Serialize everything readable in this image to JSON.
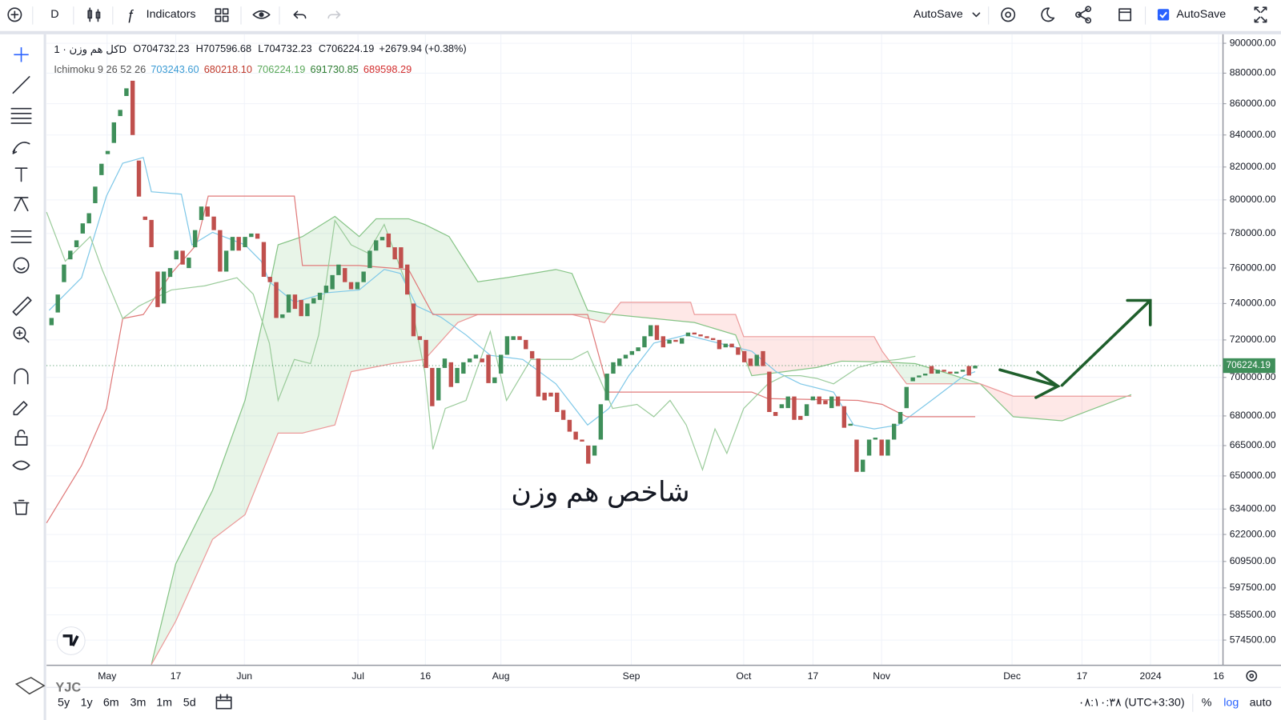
{
  "toolbar": {
    "interval": "D",
    "indicators": "Indicators",
    "autosave_menu": "AutoSave",
    "autosave_check": "AutoSave"
  },
  "legend": {
    "symbol": "کل هم وزن · 1D",
    "open": "O704732.23",
    "high": "H707596.68",
    "low": "L704732.23",
    "close": "C706224.19",
    "change": "+2679.94 (+0.38%)"
  },
  "ichimoku_legend": {
    "name": "Ichimoku 9 26 52 26",
    "values": [
      {
        "text": "703243.60",
        "color": "#3b9bd4"
      },
      {
        "text": "680218.10",
        "color": "#c0392b"
      },
      {
        "text": "706224.19",
        "color": "#5aa95a"
      },
      {
        "text": "691730.85",
        "color": "#2e7d32"
      },
      {
        "text": "689598.29",
        "color": "#d32f2f"
      }
    ]
  },
  "bottom_bar": {
    "ranges": [
      "5y",
      "1y",
      "6m",
      "3m",
      "1m",
      "5d"
    ],
    "time": "۰۸:۱۰:۳۸ (UTC+3:30)",
    "percent": "%",
    "log": "log",
    "auto": "auto"
  },
  "watermark": "YJC",
  "chart_data": {
    "type": "candlestick",
    "annotation": "شاخص هم وزن",
    "log": true,
    "grid": true,
    "up_color": "#3f8f5a",
    "down_color": "#c0504d",
    "xlim": [
      -0.8,
      187.7
    ],
    "ylim": [
      563700,
      906100
    ],
    "xticks": [
      {
        "value": 8.9,
        "label": "May"
      },
      {
        "value": 19.9,
        "label": "17"
      },
      {
        "value": 30.9,
        "label": "Jun"
      },
      {
        "value": 49.1,
        "label": "Jul"
      },
      {
        "value": 59.9,
        "label": "16"
      },
      {
        "value": 72.0,
        "label": "Aug"
      },
      {
        "value": 92.9,
        "label": "Sep"
      },
      {
        "value": 110.9,
        "label": "Oct"
      },
      {
        "value": 122.0,
        "label": "17"
      },
      {
        "value": 133.0,
        "label": "Nov"
      },
      {
        "value": 153.9,
        "label": "Dec"
      },
      {
        "value": 165.1,
        "label": "17"
      },
      {
        "value": 176.1,
        "label": "2024"
      },
      {
        "value": 187.0,
        "label": "16"
      }
    ],
    "yticks": [
      {
        "value": 900000,
        "label": "900000.00"
      },
      {
        "value": 880000,
        "label": "880000.00"
      },
      {
        "value": 860000,
        "label": "860000.00"
      },
      {
        "value": 840000,
        "label": "840000.00"
      },
      {
        "value": 820000,
        "label": "820000.00"
      },
      {
        "value": 800000,
        "label": "800000.00"
      },
      {
        "value": 780000,
        "label": "780000.00"
      },
      {
        "value": 760000,
        "label": "760000.00"
      },
      {
        "value": 740000,
        "label": "740000.00"
      },
      {
        "value": 720000,
        "label": "720000.00"
      },
      {
        "value": 700000,
        "label": "700000.00"
      },
      {
        "value": 680000,
        "label": "680000.00"
      },
      {
        "value": 665000,
        "label": "665000.00"
      },
      {
        "value": 650000,
        "label": "650000.00"
      },
      {
        "value": 634000,
        "label": "634000.00"
      },
      {
        "value": 622000,
        "label": "622000.00"
      },
      {
        "value": 609500,
        "label": "609500.00"
      },
      {
        "value": 597500,
        "label": "597500.00"
      },
      {
        "value": 585500,
        "label": "585500.00"
      },
      {
        "value": 574500,
        "label": "574500.00"
      }
    ],
    "open": [
      728000,
      735000,
      752000,
      765000,
      772000,
      780000,
      786000,
      798000,
      815000,
      828000,
      835000,
      852000,
      865000,
      875000,
      824000,
      790000,
      788000,
      758000,
      740000,
      755000,
      765000,
      770000,
      760000,
      772000,
      788000,
      796000,
      790000,
      782000,
      758000,
      770000,
      778000,
      772000,
      778000,
      780000,
      775000,
      755000,
      752000,
      732000,
      735000,
      745000,
      742000,
      733000,
      740000,
      742000,
      746000,
      748000,
      756000,
      760000,
      752000,
      748000,
      752000,
      760000,
      770000,
      776000,
      780000,
      772000,
      772000,
      762000,
      740000,
      722000,
      720000,
      705000,
      688000,
      705000,
      708000,
      697000,
      702000,
      708000,
      710000,
      710000,
      712000,
      697000,
      702000,
      712000,
      720000,
      722000,
      720000,
      714000,
      710000,
      692000,
      692000,
      692000,
      683000,
      678000,
      672000,
      668000,
      665000,
      660000,
      668000,
      688000,
      702000,
      706000,
      710000,
      712000,
      714000,
      716000,
      722000,
      728000,
      722000,
      718000,
      720000,
      718000,
      722000,
      724000,
      723000,
      722000,
      721000,
      720000,
      716000,
      718000,
      716000,
      714000,
      710000,
      706000,
      714000,
      703000,
      682000,
      684000,
      684000,
      690000,
      680000,
      680000,
      688000,
      690000,
      688000,
      684000,
      690000,
      685000,
      675000,
      668000,
      652000,
      660000,
      668000,
      668000,
      660000,
      668000,
      676000,
      684000,
      698000,
      700000,
      701000,
      706000,
      702000,
      704000,
      703000,
      702000,
      703000,
      706000,
      704732.23
    ],
    "close": [
      732000,
      745000,
      762000,
      770000,
      776000,
      786000,
      792000,
      808000,
      822000,
      830000,
      848000,
      856000,
      870000,
      840000,
      802000,
      788000,
      772000,
      738000,
      758000,
      760000,
      770000,
      762000,
      766000,
      782000,
      796000,
      790000,
      782000,
      758000,
      770000,
      778000,
      770000,
      778000,
      780000,
      777000,
      755000,
      752000,
      732000,
      734000,
      745000,
      737000,
      733000,
      740000,
      743000,
      746000,
      750000,
      756000,
      762000,
      752000,
      748000,
      752000,
      758000,
      770000,
      776000,
      778000,
      772000,
      765000,
      760000,
      745000,
      722000,
      720000,
      705000,
      685000,
      705000,
      710000,
      695000,
      705000,
      708000,
      710000,
      712000,
      708000,
      697000,
      700000,
      712000,
      722000,
      722000,
      720000,
      715000,
      710000,
      690000,
      688000,
      690000,
      682000,
      678000,
      672000,
      668000,
      667000,
      656000,
      665000,
      686000,
      702000,
      708000,
      710000,
      712000,
      714000,
      716000,
      722000,
      728000,
      720000,
      716000,
      720000,
      719000,
      721000,
      724000,
      723000,
      722000,
      721000,
      720000,
      715000,
      718000,
      716000,
      712000,
      708000,
      706000,
      712000,
      706000,
      682000,
      680000,
      686000,
      690000,
      678000,
      678000,
      686000,
      690000,
      686000,
      686000,
      690000,
      685000,
      674000,
      676000,
      652000,
      658000,
      668000,
      669000,
      660000,
      668000,
      676000,
      682000,
      695000,
      700000,
      701000,
      702000,
      702000,
      704000,
      703000,
      702000,
      703000,
      704000,
      701000,
      706224.19
    ],
    "cloud_fill": {
      "up": "rgba(76,175,80,0.13)",
      "down": "rgba(244,67,54,0.12)"
    },
    "series": [
      {
        "color": "#86c486",
        "x": [
          16.0,
          19.9,
          25.8,
          31.0,
          33.6,
          36.3,
          40.2,
          45.4,
          49.3,
          52.0,
          57.2,
          59.8,
          63.7,
          68.3,
          72.9,
          80.8,
          83.4,
          85.9,
          89.9,
          96.5,
          103.0,
          109.6,
          112.2,
          117.4,
          122.6,
          126.6,
          133.1,
          138.4,
          143.6,
          148.8,
          154.1,
          161.9,
          167.1,
          173.0
        ],
        "values": [
          564000,
          608400,
          643000,
          688000,
          727200,
          773400,
          778200,
          790100,
          778200,
          788700,
          788700,
          785300,
          778200,
          752200,
          754500,
          759200,
          756900,
          736200,
          733900,
          731700,
          729500,
          722700,
          700900,
          703000,
          705200,
          708600,
          708200,
          707300,
          702100,
          696600,
          679600,
          677500,
          683800,
          691000
        ]
      },
      {
        "color": "#ec9a9a",
        "x": [
          16.0,
          19.9,
          25.8,
          31.0,
          36.3,
          40.2,
          45.4,
          48.0,
          54.6,
          59.8,
          65.1,
          68.3,
          75.5,
          83.4,
          88.6,
          91.2,
          102.4,
          103.0,
          109.6,
          110.9,
          131.8,
          133.1,
          137.0,
          148.8,
          154.1,
          173.0
        ],
        "values": [
          564000,
          582700,
          619700,
          631300,
          671300,
          671300,
          675400,
          703000,
          707300,
          709500,
          729500,
          733900,
          733900,
          733900,
          729500,
          740700,
          740700,
          733900,
          733900,
          721800,
          721800,
          713900,
          696600,
          696600,
          690200,
          690200
        ]
      },
      {
        "color": "#7fc8e8",
        "x": [
          -0.4,
          4.8,
          8.8,
          11.4,
          14.7,
          16.0,
          20.8,
          22.5,
          25.8,
          31.0,
          33.6,
          34.9,
          38.9,
          44.1,
          49.3,
          53.3,
          55.9,
          58.5,
          62.4,
          66.4,
          70.3,
          75.5,
          80.8,
          85.9,
          89.3,
          92.5,
          96.5,
          101.7,
          106.9,
          112.2,
          116.1,
          120.0,
          125.3,
          128.5,
          131.8,
          135.7,
          141.0,
          146.2,
          148.0
        ],
        "values": [
          736200,
          754500,
          802300,
          822400,
          825900,
          804900,
          803400,
          773400,
          780700,
          773400,
          763900,
          752200,
          740700,
          746000,
          747600,
          759200,
          756900,
          738600,
          732400,
          722700,
          711700,
          709500,
          696600,
          675400,
          683800,
          700900,
          718300,
          722700,
          718300,
          713900,
          703000,
          696600,
          692300,
          675400,
          673400,
          675400,
          688000,
          700900,
          703000
        ]
      },
      {
        "color": "#e07a7a",
        "x": [
          -0.8,
          4.8,
          8.8,
          11.4,
          14.7,
          19.2,
          23.2,
          25.1,
          38.9,
          40.2,
          49.3,
          57.2,
          61.1,
          85.9,
          89.3,
          112.2,
          114.8,
          129.2,
          133.1,
          137.0,
          148.0
        ],
        "values": [
          627400,
          655100,
          683800,
          731700,
          733900,
          756900,
          773400,
          802300,
          802300,
          761500,
          761500,
          759200,
          733900,
          733900,
          692300,
          692300,
          688900,
          688000,
          685900,
          679600,
          679600
        ]
      },
      {
        "color": "#9ccc9c",
        "x": [
          -0.8,
          2.2,
          6.2,
          8.1,
          11.4,
          14.0,
          19.2,
          24.5,
          29.7,
          32.3,
          34.9,
          36.3,
          38.9,
          41.5,
          42.8,
          45.4,
          48.0,
          50.7,
          53.3,
          57.2,
          59.8,
          61.1,
          63.1,
          66.4,
          70.3,
          72.9,
          76.8,
          83.4,
          85.9,
          89.9,
          93.8,
          96.5,
          99.1,
          101.7,
          104.3,
          106.3,
          108.2,
          110.9,
          114.8,
          117.4,
          120.0,
          122.6,
          125.3,
          129.2,
          133.1,
          135.7,
          138.4
        ],
        "values": [
          792700,
          763900,
          778200,
          759200,
          731700,
          738600,
          747600,
          749900,
          754500,
          745300,
          718300,
          688000,
          709500,
          707300,
          722700,
          787700,
          773400,
          768600,
          785300,
          747600,
          703000,
          663100,
          683800,
          688000,
          724600,
          688000,
          709500,
          709500,
          713900,
          683800,
          685900,
          679600,
          688000,
          675400,
          653000,
          673400,
          661100,
          683800,
          696600,
          700900,
          700900,
          699500,
          696600,
          705200,
          708600,
          709500,
          711200
        ]
      }
    ]
  }
}
